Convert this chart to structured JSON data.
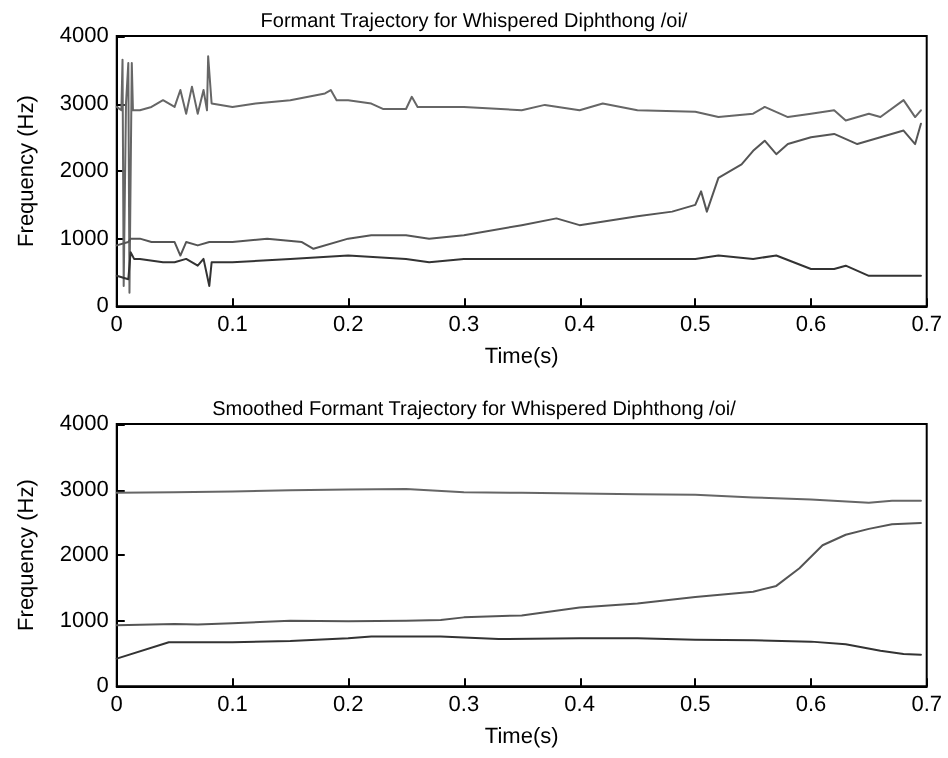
{
  "chart_data": [
    {
      "type": "line",
      "title": "Formant Trajectory for Whispered Diphthong /oi/",
      "xlabel": "Time(s)",
      "ylabel": "Frequency (Hz)",
      "xlim": [
        0,
        0.7
      ],
      "xticks": [
        0,
        0.1,
        0.2,
        0.3,
        0.4,
        0.5,
        0.6,
        0.7
      ],
      "ylim": [
        0,
        4000
      ],
      "yticks": [
        0,
        1000,
        2000,
        3000,
        4000
      ],
      "grid": false,
      "marker": "none",
      "line_style": "solid",
      "series": [
        {
          "color": "#666666",
          "x": [
            0,
            0.004,
            0.005,
            0.006,
            0.008,
            0.01,
            0.011,
            0.013,
            0.014,
            0.02,
            0.03,
            0.04,
            0.05,
            0.055,
            0.06,
            0.065,
            0.07,
            0.075,
            0.078,
            0.079,
            0.082,
            0.1,
            0.12,
            0.15,
            0.18,
            0.185,
            0.19,
            0.2,
            0.22,
            0.23,
            0.25,
            0.255,
            0.26,
            0.3,
            0.35,
            0.37,
            0.4,
            0.42,
            0.45,
            0.5,
            0.52,
            0.55,
            0.56,
            0.58,
            0.6,
            0.62,
            0.63,
            0.65,
            0.66,
            0.68,
            0.69,
            0.695
          ],
          "values": [
            2950,
            2900,
            3650,
            300,
            3000,
            3600,
            200,
            3600,
            2900,
            2900,
            2950,
            3050,
            2950,
            3200,
            2850,
            3250,
            2850,
            3200,
            2900,
            3700,
            3000,
            2950,
            3000,
            3050,
            3150,
            3200,
            3050,
            3050,
            3000,
            2920,
            2920,
            3100,
            2950,
            2950,
            2900,
            2980,
            2900,
            3000,
            2900,
            2880,
            2800,
            2850,
            2950,
            2800,
            2850,
            2900,
            2750,
            2850,
            2800,
            3050,
            2800,
            2900
          ]
        },
        {
          "color": "#555555",
          "x": [
            0,
            0.01,
            0.012,
            0.02,
            0.03,
            0.05,
            0.055,
            0.06,
            0.07,
            0.08,
            0.1,
            0.13,
            0.16,
            0.17,
            0.2,
            0.22,
            0.25,
            0.27,
            0.3,
            0.35,
            0.38,
            0.4,
            0.45,
            0.48,
            0.5,
            0.505,
            0.51,
            0.52,
            0.54,
            0.55,
            0.56,
            0.57,
            0.58,
            0.6,
            0.62,
            0.64,
            0.66,
            0.68,
            0.69,
            0.695
          ],
          "values": [
            900,
            950,
            1000,
            1000,
            950,
            950,
            750,
            950,
            900,
            950,
            950,
            1000,
            950,
            850,
            1000,
            1050,
            1050,
            1000,
            1050,
            1200,
            1300,
            1200,
            1330,
            1400,
            1500,
            1700,
            1400,
            1900,
            2100,
            2300,
            2450,
            2250,
            2400,
            2500,
            2550,
            2400,
            2500,
            2600,
            2400,
            2700
          ]
        },
        {
          "color": "#333333",
          "x": [
            0,
            0.01,
            0.012,
            0.015,
            0.02,
            0.04,
            0.05,
            0.06,
            0.07,
            0.075,
            0.08,
            0.082,
            0.1,
            0.15,
            0.2,
            0.25,
            0.27,
            0.3,
            0.35,
            0.4,
            0.45,
            0.5,
            0.52,
            0.55,
            0.57,
            0.6,
            0.62,
            0.63,
            0.65,
            0.695
          ],
          "values": [
            450,
            400,
            800,
            700,
            700,
            650,
            650,
            700,
            600,
            700,
            300,
            650,
            650,
            700,
            750,
            700,
            650,
            700,
            700,
            700,
            700,
            700,
            750,
            700,
            750,
            550,
            550,
            600,
            450,
            450
          ]
        }
      ]
    },
    {
      "type": "line",
      "title": "Smoothed Formant Trajectory for Whispered Diphthong /oi/",
      "xlabel": "Time(s)",
      "ylabel": "Frequency (Hz)",
      "xlim": [
        0,
        0.7
      ],
      "xticks": [
        0,
        0.1,
        0.2,
        0.3,
        0.4,
        0.5,
        0.6,
        0.7
      ],
      "ylim": [
        0,
        4000
      ],
      "yticks": [
        0,
        1000,
        2000,
        3000,
        4000
      ],
      "grid": false,
      "marker": "none",
      "line_style": "solid",
      "series": [
        {
          "color": "#666666",
          "x": [
            0,
            0.05,
            0.1,
            0.15,
            0.2,
            0.25,
            0.3,
            0.35,
            0.4,
            0.45,
            0.5,
            0.55,
            0.6,
            0.65,
            0.67,
            0.695
          ],
          "values": [
            2950,
            2960,
            2970,
            2990,
            3000,
            3010,
            2960,
            2950,
            2940,
            2930,
            2920,
            2880,
            2850,
            2800,
            2830,
            2830
          ]
        },
        {
          "color": "#555555",
          "x": [
            0,
            0.05,
            0.07,
            0.1,
            0.15,
            0.2,
            0.25,
            0.28,
            0.3,
            0.35,
            0.4,
            0.45,
            0.5,
            0.55,
            0.57,
            0.59,
            0.61,
            0.63,
            0.65,
            0.67,
            0.695
          ],
          "values": [
            930,
            950,
            940,
            960,
            1000,
            990,
            1000,
            1010,
            1050,
            1080,
            1200,
            1260,
            1360,
            1440,
            1530,
            1800,
            2150,
            2310,
            2400,
            2470,
            2490
          ]
        },
        {
          "color": "#333333",
          "x": [
            0,
            0.045,
            0.1,
            0.15,
            0.2,
            0.22,
            0.28,
            0.33,
            0.4,
            0.45,
            0.5,
            0.55,
            0.6,
            0.63,
            0.66,
            0.68,
            0.695
          ],
          "values": [
            420,
            670,
            670,
            690,
            730,
            760,
            760,
            720,
            730,
            730,
            710,
            700,
            680,
            640,
            540,
            490,
            480
          ]
        }
      ]
    }
  ]
}
